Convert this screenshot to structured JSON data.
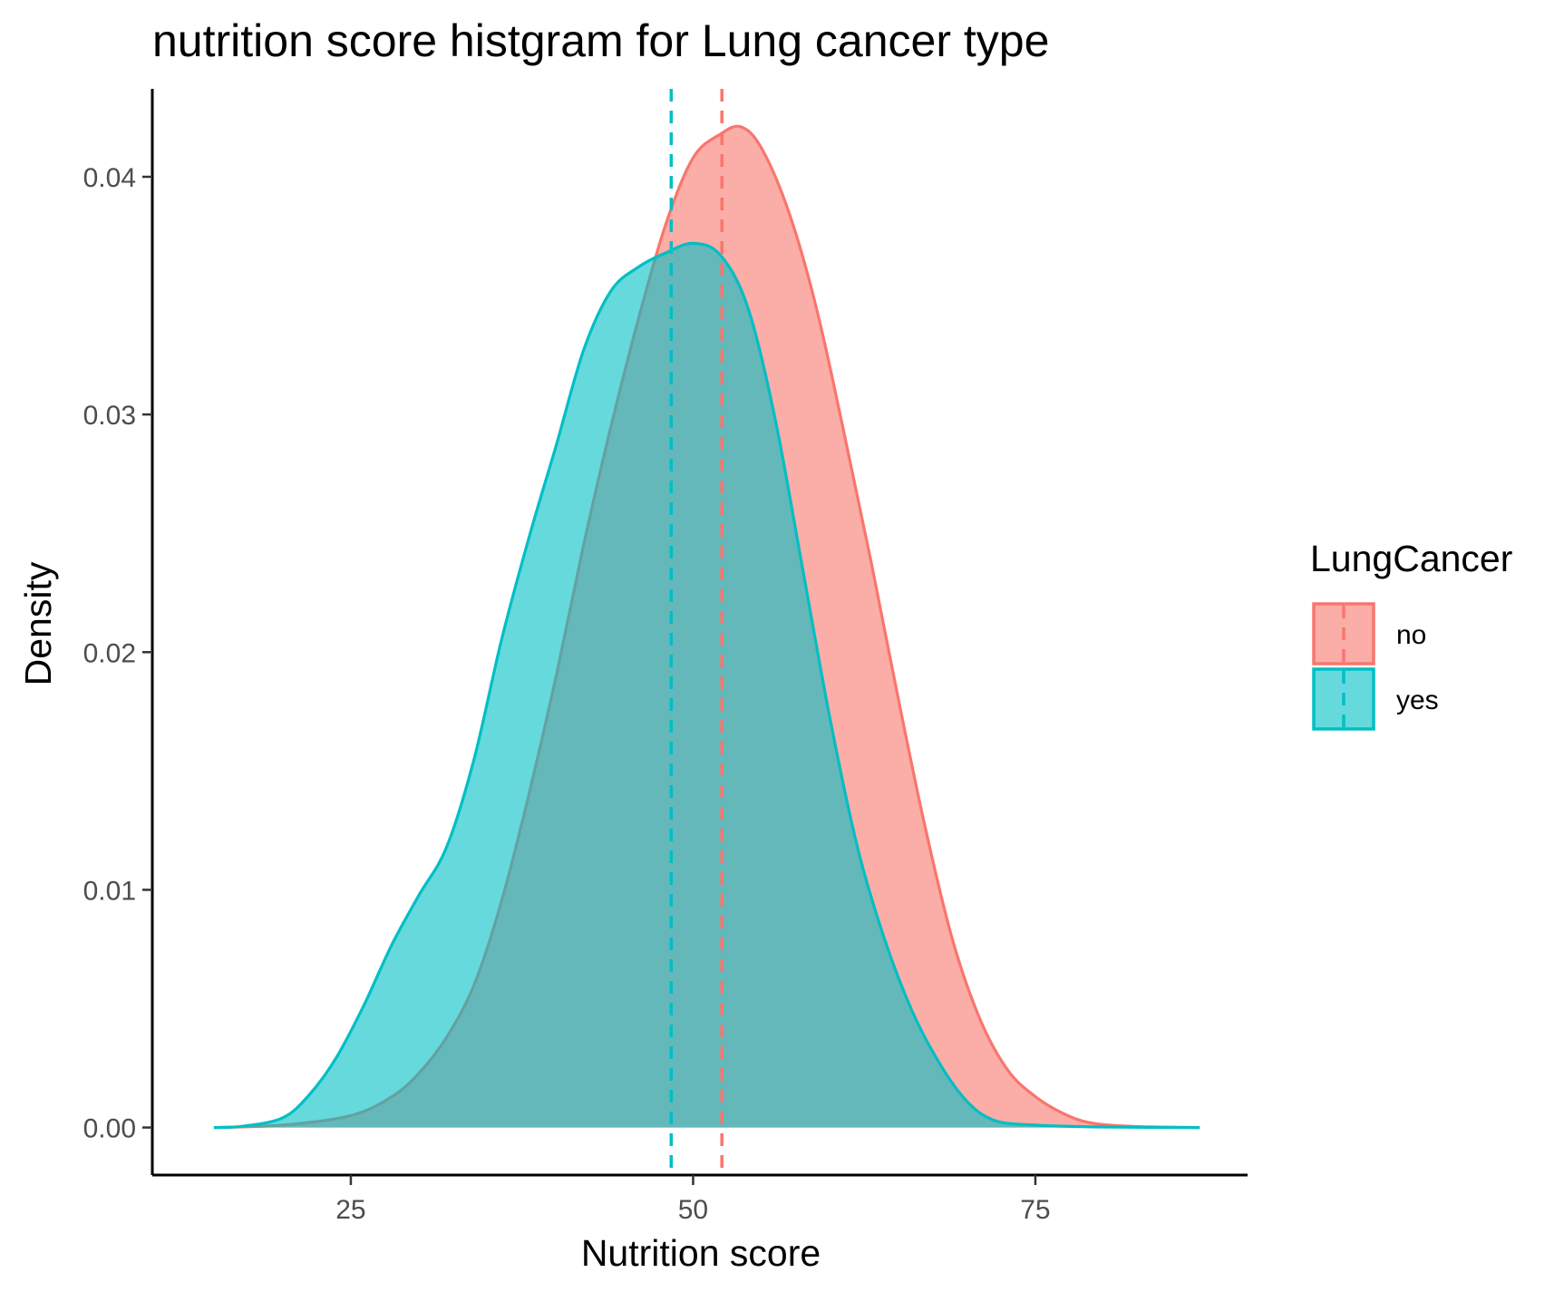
{
  "chart_data": {
    "type": "area",
    "title": "nutrition score histgram for Lung cancer type",
    "xlabel": "Nutrition score",
    "ylabel": "Density",
    "xlim": [
      10.5,
      90.5
    ],
    "ylim": [
      -0.002,
      0.0437
    ],
    "x_ticks": [
      25,
      50,
      75
    ],
    "x_tick_labels": [
      "25",
      "50",
      "75"
    ],
    "y_ticks": [
      0,
      0.01,
      0.02,
      0.03,
      0.04
    ],
    "y_tick_labels": [
      "0.00",
      "0.01",
      "0.02",
      "0.03",
      "0.04"
    ],
    "grid": false,
    "legend": {
      "title": "LungCancer",
      "position": "right"
    },
    "series": [
      {
        "name": "no",
        "color": "#F8766D",
        "mean": 52.1,
        "points": [
          [
            15,
            0
          ],
          [
            20,
            0.0001
          ],
          [
            25,
            0.0005
          ],
          [
            28,
            0.0013
          ],
          [
            30,
            0.0023
          ],
          [
            32,
            0.0038
          ],
          [
            34,
            0.006
          ],
          [
            36,
            0.0095
          ],
          [
            38,
            0.014
          ],
          [
            40,
            0.019
          ],
          [
            42,
            0.0245
          ],
          [
            44,
            0.0295
          ],
          [
            46,
            0.034
          ],
          [
            48,
            0.038
          ],
          [
            50,
            0.0408
          ],
          [
            52,
            0.0418
          ],
          [
            53.5,
            0.0421
          ],
          [
            55,
            0.0412
          ],
          [
            57,
            0.0385
          ],
          [
            59,
            0.0345
          ],
          [
            61,
            0.0293
          ],
          [
            63,
            0.0238
          ],
          [
            65,
            0.018
          ],
          [
            67,
            0.0125
          ],
          [
            69,
            0.0078
          ],
          [
            71,
            0.0045
          ],
          [
            73,
            0.0024
          ],
          [
            75,
            0.0013
          ],
          [
            77,
            0.0006
          ],
          [
            79,
            0.0002
          ],
          [
            82,
            5e-05
          ],
          [
            87,
            0
          ]
        ]
      },
      {
        "name": "yes",
        "color": "#00BFC4",
        "mean": 48.4,
        "points": [
          [
            15,
            0
          ],
          [
            17,
            5e-05
          ],
          [
            20,
            0.0004
          ],
          [
            22,
            0.0014
          ],
          [
            24,
            0.003
          ],
          [
            26,
            0.0052
          ],
          [
            28,
            0.0077
          ],
          [
            30,
            0.0098
          ],
          [
            32,
            0.0118
          ],
          [
            34,
            0.0155
          ],
          [
            36,
            0.0205
          ],
          [
            38,
            0.0248
          ],
          [
            40,
            0.0287
          ],
          [
            42,
            0.0327
          ],
          [
            44,
            0.0352
          ],
          [
            46,
            0.0362
          ],
          [
            48,
            0.0368
          ],
          [
            50,
            0.0372
          ],
          [
            52,
            0.0367
          ],
          [
            54,
            0.0345
          ],
          [
            56,
            0.0298
          ],
          [
            58,
            0.0235
          ],
          [
            60,
            0.0172
          ],
          [
            62,
            0.0118
          ],
          [
            64,
            0.0079
          ],
          [
            66,
            0.0049
          ],
          [
            68,
            0.0027
          ],
          [
            70,
            0.0011
          ],
          [
            72,
            0.0003
          ],
          [
            75,
            0.0001
          ],
          [
            80,
            2e-05
          ],
          [
            87,
            0
          ]
        ]
      }
    ]
  }
}
